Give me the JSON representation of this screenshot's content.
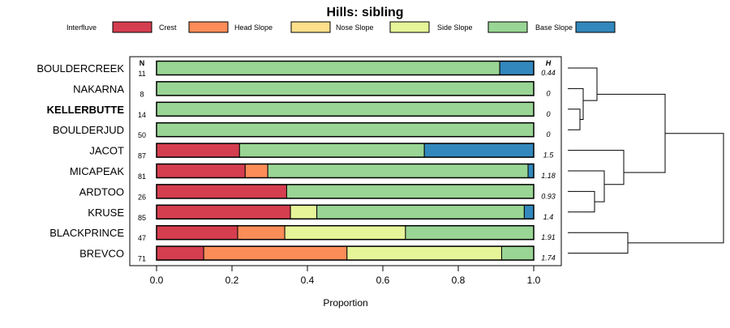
{
  "chart_data": {
    "type": "bar",
    "orientation": "horizontal",
    "stacked": true,
    "title": "Hills: sibling",
    "xlabel": "Proportion",
    "xlim": [
      0,
      1
    ],
    "x_ticks": [
      "0.0",
      "0.2",
      "0.4",
      "0.6",
      "0.8",
      "1.0"
    ],
    "n_header": "N",
    "h_header": "H",
    "legend": [
      {
        "name": "Interfluve",
        "color": "#D53E4F"
      },
      {
        "name": "Crest",
        "color": "#FC8D59"
      },
      {
        "name": "Head Slope",
        "color": "#FEE08B"
      },
      {
        "name": "Nose Slope",
        "color": "#E6F598"
      },
      {
        "name": "Side Slope",
        "color": "#99D594"
      },
      {
        "name": "Base Slope",
        "color": "#3288BD"
      }
    ],
    "rows": [
      {
        "label": "BOULDERCREEK",
        "n": "11",
        "h": "0.44",
        "bold": false,
        "segments": [
          0,
          0,
          0,
          0,
          0.91,
          0.09
        ]
      },
      {
        "label": "NAKARNA",
        "n": "8",
        "h": "0",
        "bold": false,
        "segments": [
          0,
          0,
          0,
          0,
          1.0,
          0
        ]
      },
      {
        "label": "KELLERBUTTE",
        "n": "14",
        "h": "0",
        "bold": true,
        "segments": [
          0,
          0,
          0,
          0,
          1.0,
          0
        ]
      },
      {
        "label": "BOULDERJUD",
        "n": "50",
        "h": "0",
        "bold": false,
        "segments": [
          0,
          0,
          0,
          0,
          1.0,
          0
        ]
      },
      {
        "label": "JACOT",
        "n": "87",
        "h": "1.5",
        "bold": false,
        "segments": [
          0.22,
          0,
          0,
          0,
          0.49,
          0.29
        ]
      },
      {
        "label": "MICAPEAK",
        "n": "81",
        "h": "1.18",
        "bold": false,
        "segments": [
          0.235,
          0.06,
          0,
          0,
          0.69,
          0.015
        ]
      },
      {
        "label": "ARDTOO",
        "n": "26",
        "h": "0.93",
        "bold": false,
        "segments": [
          0.345,
          0,
          0,
          0,
          0.655,
          0
        ]
      },
      {
        "label": "KRUSE",
        "n": "85",
        "h": "1.4",
        "bold": false,
        "segments": [
          0.355,
          0,
          0,
          0.07,
          0.55,
          0.025
        ]
      },
      {
        "label": "BLACKPRINCE",
        "n": "47",
        "h": "1.91",
        "bold": false,
        "segments": [
          0.215,
          0.125,
          0,
          0.32,
          0.34,
          0
        ]
      },
      {
        "label": "BREVCO",
        "n": "71",
        "h": "1.74",
        "bold": false,
        "segments": [
          0.125,
          0.38,
          0,
          0.41,
          0.085,
          0
        ]
      }
    ]
  }
}
